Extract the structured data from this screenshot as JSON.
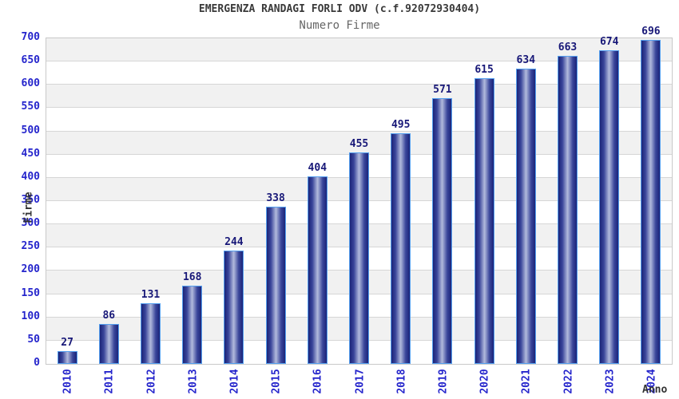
{
  "chart_data": {
    "type": "bar",
    "title": "EMERGENZA RANDAGI FORLI ODV (c.f.92072930404)",
    "subtitle": "Numero Firme",
    "categories": [
      "2010",
      "2011",
      "2012",
      "2013",
      "2014",
      "2015",
      "2016",
      "2017",
      "2018",
      "2019",
      "2020",
      "2021",
      "2022",
      "2023",
      "2024"
    ],
    "values": [
      27,
      86,
      131,
      168,
      244,
      338,
      404,
      455,
      495,
      571,
      615,
      634,
      663,
      674,
      696
    ],
    "xlabel": "Anno",
    "ylabel": "Firme",
    "ylim": [
      0,
      700
    ],
    "ytick_step": 50,
    "grid": true,
    "legend_position": "none",
    "band_fill_alternating": true,
    "colors": {
      "bar_edge": "#1b2478",
      "bar_mid": "#39459a",
      "bar_center": "#b2badd",
      "bar_border": "#55a0f0",
      "tick_label": "#2525cc",
      "value_label": "#181878",
      "axis_title": "#333333",
      "chart_title": "#3a3a3a",
      "chart_subtitle": "#666666",
      "gridline": "#d6d6d6",
      "band_gray": "#f1f1f1",
      "band_white": "#ffffff",
      "plot_border": "#c9c9c9"
    }
  }
}
